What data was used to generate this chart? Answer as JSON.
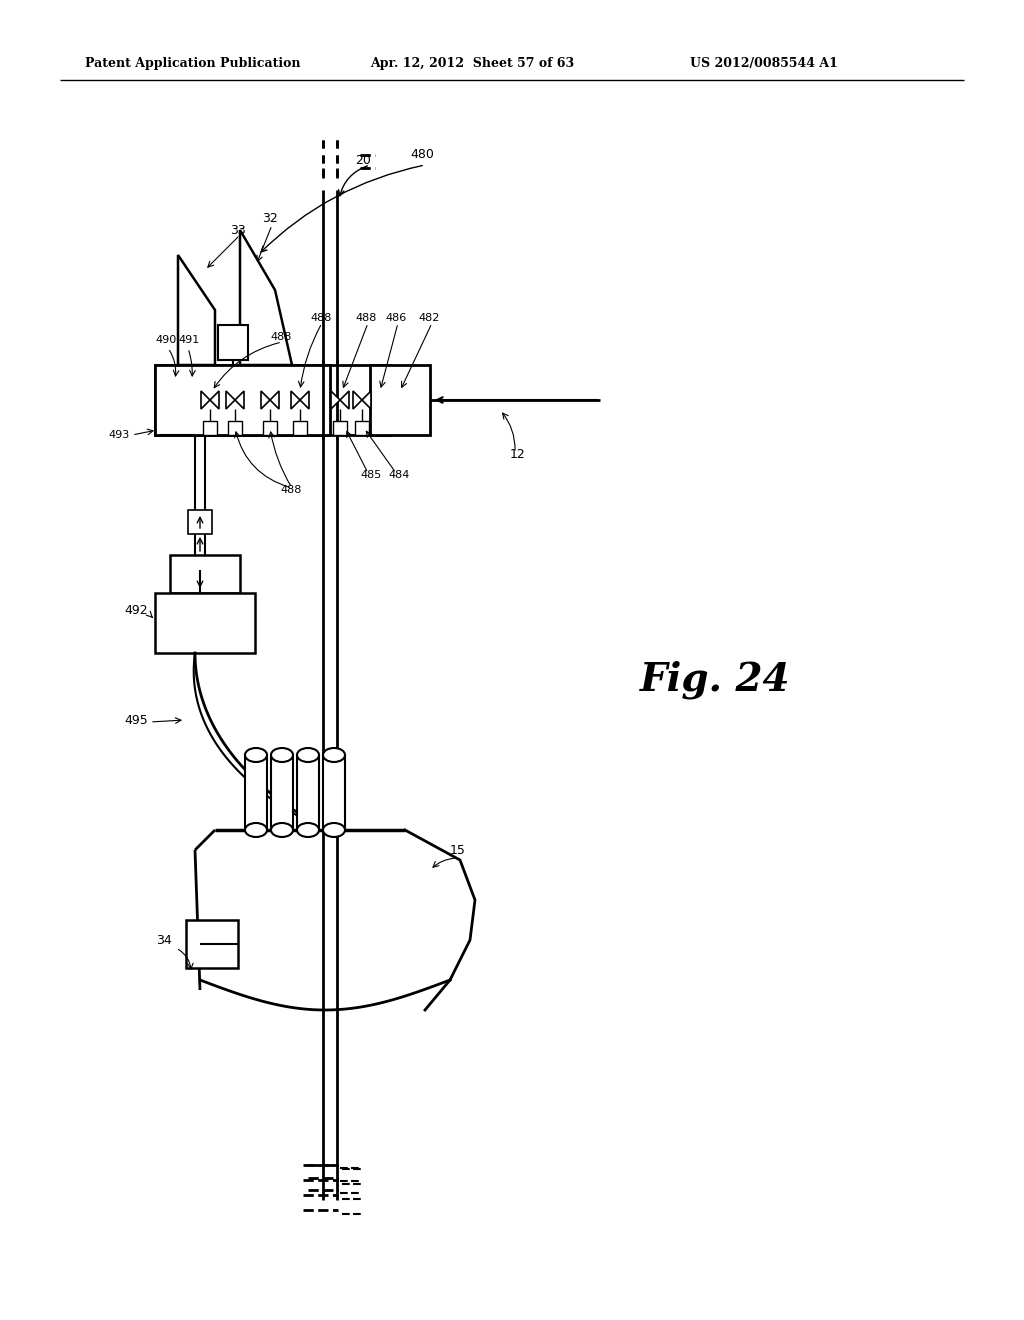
{
  "bg_color": "#ffffff",
  "line_color": "#000000",
  "header_left": "Patent Application Publication",
  "header_mid": "Apr. 12, 2012  Sheet 57 of 63",
  "header_right": "US 2012/0085544 A1",
  "fig_label": "Fig. 24"
}
